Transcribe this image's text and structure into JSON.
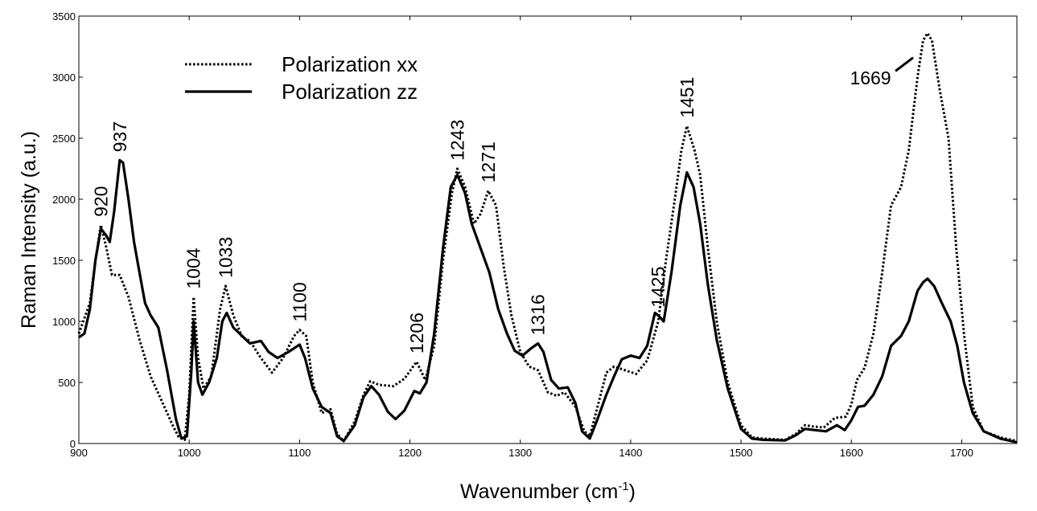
{
  "chart_data": {
    "type": "line",
    "xlabel": "Wavenumber (cm",
    "xlabel_sup": "-1",
    "xlabel_end": ")",
    "ylabel": "Raman Intensity (a.u.)",
    "xlim": [
      900,
      1750
    ],
    "ylim": [
      0,
      3500
    ],
    "xticks": [
      900,
      1000,
      1100,
      1200,
      1300,
      1400,
      1500,
      1600,
      1700
    ],
    "yticks": [
      0,
      500,
      1000,
      1500,
      2000,
      2500,
      3000,
      3500
    ],
    "grid": false,
    "legend_position": "top-left",
    "series": [
      {
        "name": "Polarization xx",
        "style": "dotted",
        "color": "#000000",
        "points": [
          [
            900,
            900
          ],
          [
            910,
            1150
          ],
          [
            915,
            1500
          ],
          [
            920,
            1790
          ],
          [
            925,
            1600
          ],
          [
            930,
            1380
          ],
          [
            937,
            1380
          ],
          [
            945,
            1200
          ],
          [
            955,
            850
          ],
          [
            965,
            550
          ],
          [
            975,
            350
          ],
          [
            985,
            150
          ],
          [
            990,
            60
          ],
          [
            996,
            30
          ],
          [
            1000,
            400
          ],
          [
            1004,
            1200
          ],
          [
            1008,
            700
          ],
          [
            1013,
            450
          ],
          [
            1020,
            550
          ],
          [
            1028,
            1100
          ],
          [
            1033,
            1290
          ],
          [
            1040,
            1050
          ],
          [
            1048,
            870
          ],
          [
            1055,
            840
          ],
          [
            1065,
            700
          ],
          [
            1075,
            580
          ],
          [
            1085,
            700
          ],
          [
            1095,
            880
          ],
          [
            1100,
            930
          ],
          [
            1106,
            880
          ],
          [
            1112,
            500
          ],
          [
            1120,
            250
          ],
          [
            1128,
            280
          ],
          [
            1134,
            80
          ],
          [
            1140,
            20
          ],
          [
            1150,
            180
          ],
          [
            1158,
            400
          ],
          [
            1164,
            510
          ],
          [
            1172,
            480
          ],
          [
            1185,
            470
          ],
          [
            1195,
            530
          ],
          [
            1206,
            670
          ],
          [
            1214,
            520
          ],
          [
            1222,
            800
          ],
          [
            1230,
            1500
          ],
          [
            1238,
            2050
          ],
          [
            1243,
            2250
          ],
          [
            1250,
            2100
          ],
          [
            1258,
            1800
          ],
          [
            1264,
            1880
          ],
          [
            1271,
            2070
          ],
          [
            1278,
            1950
          ],
          [
            1285,
            1450
          ],
          [
            1292,
            1050
          ],
          [
            1300,
            750
          ],
          [
            1308,
            630
          ],
          [
            1316,
            600
          ],
          [
            1325,
            420
          ],
          [
            1333,
            390
          ],
          [
            1340,
            420
          ],
          [
            1350,
            300
          ],
          [
            1358,
            100
          ],
          [
            1363,
            60
          ],
          [
            1370,
            300
          ],
          [
            1378,
            580
          ],
          [
            1385,
            630
          ],
          [
            1395,
            600
          ],
          [
            1405,
            570
          ],
          [
            1415,
            680
          ],
          [
            1425,
            1000
          ],
          [
            1432,
            1500
          ],
          [
            1440,
            2000
          ],
          [
            1446,
            2400
          ],
          [
            1451,
            2600
          ],
          [
            1458,
            2400
          ],
          [
            1463,
            2200
          ],
          [
            1470,
            1600
          ],
          [
            1478,
            1000
          ],
          [
            1488,
            500
          ],
          [
            1500,
            150
          ],
          [
            1510,
            50
          ],
          [
            1520,
            40
          ],
          [
            1540,
            30
          ],
          [
            1550,
            80
          ],
          [
            1558,
            150
          ],
          [
            1565,
            140
          ],
          [
            1575,
            130
          ],
          [
            1585,
            210
          ],
          [
            1595,
            220
          ],
          [
            1600,
            320
          ],
          [
            1605,
            520
          ],
          [
            1612,
            620
          ],
          [
            1620,
            900
          ],
          [
            1628,
            1400
          ],
          [
            1636,
            1950
          ],
          [
            1645,
            2100
          ],
          [
            1652,
            2400
          ],
          [
            1660,
            3000
          ],
          [
            1665,
            3300
          ],
          [
            1669,
            3360
          ],
          [
            1673,
            3300
          ],
          [
            1680,
            2900
          ],
          [
            1688,
            2500
          ],
          [
            1695,
            1600
          ],
          [
            1702,
            900
          ],
          [
            1710,
            300
          ],
          [
            1720,
            100
          ],
          [
            1735,
            50
          ],
          [
            1750,
            20
          ]
        ]
      },
      {
        "name": "Polarization zz",
        "style": "solid",
        "color": "#000000",
        "points": [
          [
            900,
            870
          ],
          [
            905,
            900
          ],
          [
            910,
            1100
          ],
          [
            915,
            1500
          ],
          [
            920,
            1760
          ],
          [
            925,
            1700
          ],
          [
            928,
            1650
          ],
          [
            932,
            1900
          ],
          [
            937,
            2320
          ],
          [
            940,
            2300
          ],
          [
            945,
            2000
          ],
          [
            950,
            1650
          ],
          [
            955,
            1400
          ],
          [
            960,
            1150
          ],
          [
            965,
            1050
          ],
          [
            972,
            950
          ],
          [
            980,
            600
          ],
          [
            988,
            200
          ],
          [
            993,
            40
          ],
          [
            998,
            60
          ],
          [
            1002,
            600
          ],
          [
            1004,
            1000
          ],
          [
            1008,
            500
          ],
          [
            1012,
            400
          ],
          [
            1018,
            500
          ],
          [
            1025,
            700
          ],
          [
            1030,
            1000
          ],
          [
            1034,
            1070
          ],
          [
            1040,
            950
          ],
          [
            1048,
            880
          ],
          [
            1055,
            820
          ],
          [
            1065,
            840
          ],
          [
            1072,
            750
          ],
          [
            1080,
            700
          ],
          [
            1090,
            750
          ],
          [
            1100,
            810
          ],
          [
            1105,
            700
          ],
          [
            1112,
            450
          ],
          [
            1120,
            300
          ],
          [
            1128,
            250
          ],
          [
            1134,
            60
          ],
          [
            1140,
            20
          ],
          [
            1150,
            150
          ],
          [
            1158,
            380
          ],
          [
            1165,
            470
          ],
          [
            1172,
            400
          ],
          [
            1180,
            260
          ],
          [
            1187,
            200
          ],
          [
            1195,
            270
          ],
          [
            1204,
            430
          ],
          [
            1209,
            410
          ],
          [
            1215,
            500
          ],
          [
            1222,
            900
          ],
          [
            1230,
            1600
          ],
          [
            1237,
            2100
          ],
          [
            1243,
            2200
          ],
          [
            1250,
            2050
          ],
          [
            1256,
            1800
          ],
          [
            1264,
            1600
          ],
          [
            1272,
            1400
          ],
          [
            1280,
            1100
          ],
          [
            1288,
            900
          ],
          [
            1295,
            760
          ],
          [
            1302,
            720
          ],
          [
            1310,
            780
          ],
          [
            1316,
            820
          ],
          [
            1321,
            750
          ],
          [
            1328,
            520
          ],
          [
            1335,
            450
          ],
          [
            1343,
            460
          ],
          [
            1350,
            330
          ],
          [
            1356,
            100
          ],
          [
            1363,
            40
          ],
          [
            1370,
            200
          ],
          [
            1378,
            400
          ],
          [
            1385,
            550
          ],
          [
            1392,
            690
          ],
          [
            1400,
            720
          ],
          [
            1408,
            700
          ],
          [
            1415,
            800
          ],
          [
            1422,
            1070
          ],
          [
            1426,
            1040
          ],
          [
            1430,
            1000
          ],
          [
            1437,
            1400
          ],
          [
            1445,
            1950
          ],
          [
            1451,
            2220
          ],
          [
            1457,
            2100
          ],
          [
            1463,
            1800
          ],
          [
            1470,
            1300
          ],
          [
            1478,
            850
          ],
          [
            1488,
            450
          ],
          [
            1500,
            120
          ],
          [
            1510,
            40
          ],
          [
            1520,
            30
          ],
          [
            1540,
            25
          ],
          [
            1550,
            70
          ],
          [
            1558,
            120
          ],
          [
            1567,
            110
          ],
          [
            1577,
            100
          ],
          [
            1587,
            150
          ],
          [
            1594,
            110
          ],
          [
            1600,
            190
          ],
          [
            1606,
            300
          ],
          [
            1612,
            310
          ],
          [
            1620,
            400
          ],
          [
            1628,
            550
          ],
          [
            1636,
            800
          ],
          [
            1645,
            880
          ],
          [
            1652,
            1000
          ],
          [
            1660,
            1250
          ],
          [
            1665,
            1320
          ],
          [
            1669,
            1350
          ],
          [
            1675,
            1290
          ],
          [
            1682,
            1150
          ],
          [
            1690,
            1000
          ],
          [
            1696,
            800
          ],
          [
            1702,
            500
          ],
          [
            1710,
            250
          ],
          [
            1720,
            100
          ],
          [
            1735,
            40
          ],
          [
            1750,
            10
          ]
        ]
      }
    ],
    "annotations": [
      {
        "text": "920",
        "x": 920
      },
      {
        "text": "937",
        "x": 937
      },
      {
        "text": "1004",
        "x": 1004
      },
      {
        "text": "1033",
        "x": 1033
      },
      {
        "text": "1100",
        "x": 1100
      },
      {
        "text": "1206",
        "x": 1206
      },
      {
        "text": "1243",
        "x": 1243
      },
      {
        "text": "1271",
        "x": 1271
      },
      {
        "text": "1316",
        "x": 1316
      },
      {
        "text": "1425",
        "x": 1425
      },
      {
        "text": "1451",
        "x": 1451
      },
      {
        "text": "1669",
        "x": 1669
      }
    ]
  }
}
